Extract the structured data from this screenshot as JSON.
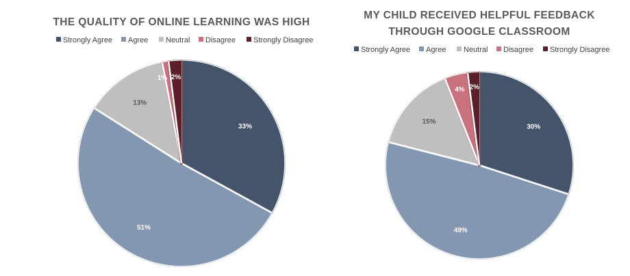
{
  "chart_data": [
    {
      "type": "pie",
      "title_lines": [
        "THE QUALITY OF ONLINE LEARNING WAS HIGH"
      ],
      "categories": [
        "Strongly Agree",
        "Agree",
        "Neutral",
        "Disagree",
        "Strongly Disagree"
      ],
      "values": [
        33,
        51,
        13,
        1,
        2
      ],
      "labels": [
        "33%",
        "51%",
        "13%",
        "1%",
        "2%"
      ],
      "legend_position": "top"
    },
    {
      "type": "pie",
      "title_lines": [
        "MY CHILD RECEIVED HELPFUL FEEDBACK",
        "THROUGH GOOGLE CLASSROOM"
      ],
      "categories": [
        "Strongly Agree",
        "Agree",
        "Neutral",
        "Disagree",
        "Strongly Disagree"
      ],
      "values": [
        30,
        49,
        15,
        4,
        2
      ],
      "labels": [
        "30%",
        "49%",
        "15%",
        "4%",
        "2%"
      ],
      "legend_position": "top"
    }
  ],
  "colors": {
    "Strongly Agree": "#44546a",
    "Agree": "#8497b0",
    "Neutral": "#bfbfbf",
    "Disagree": "#c9727e",
    "Strongly Disagree": "#5b1f2a"
  },
  "label_colors": {
    "Strongly Agree": "#ffffff",
    "Agree": "#ffffff",
    "Neutral": "#595959",
    "Disagree": "#ffffff",
    "Strongly Disagree": "#ffffff"
  },
  "title_color": "#595959"
}
